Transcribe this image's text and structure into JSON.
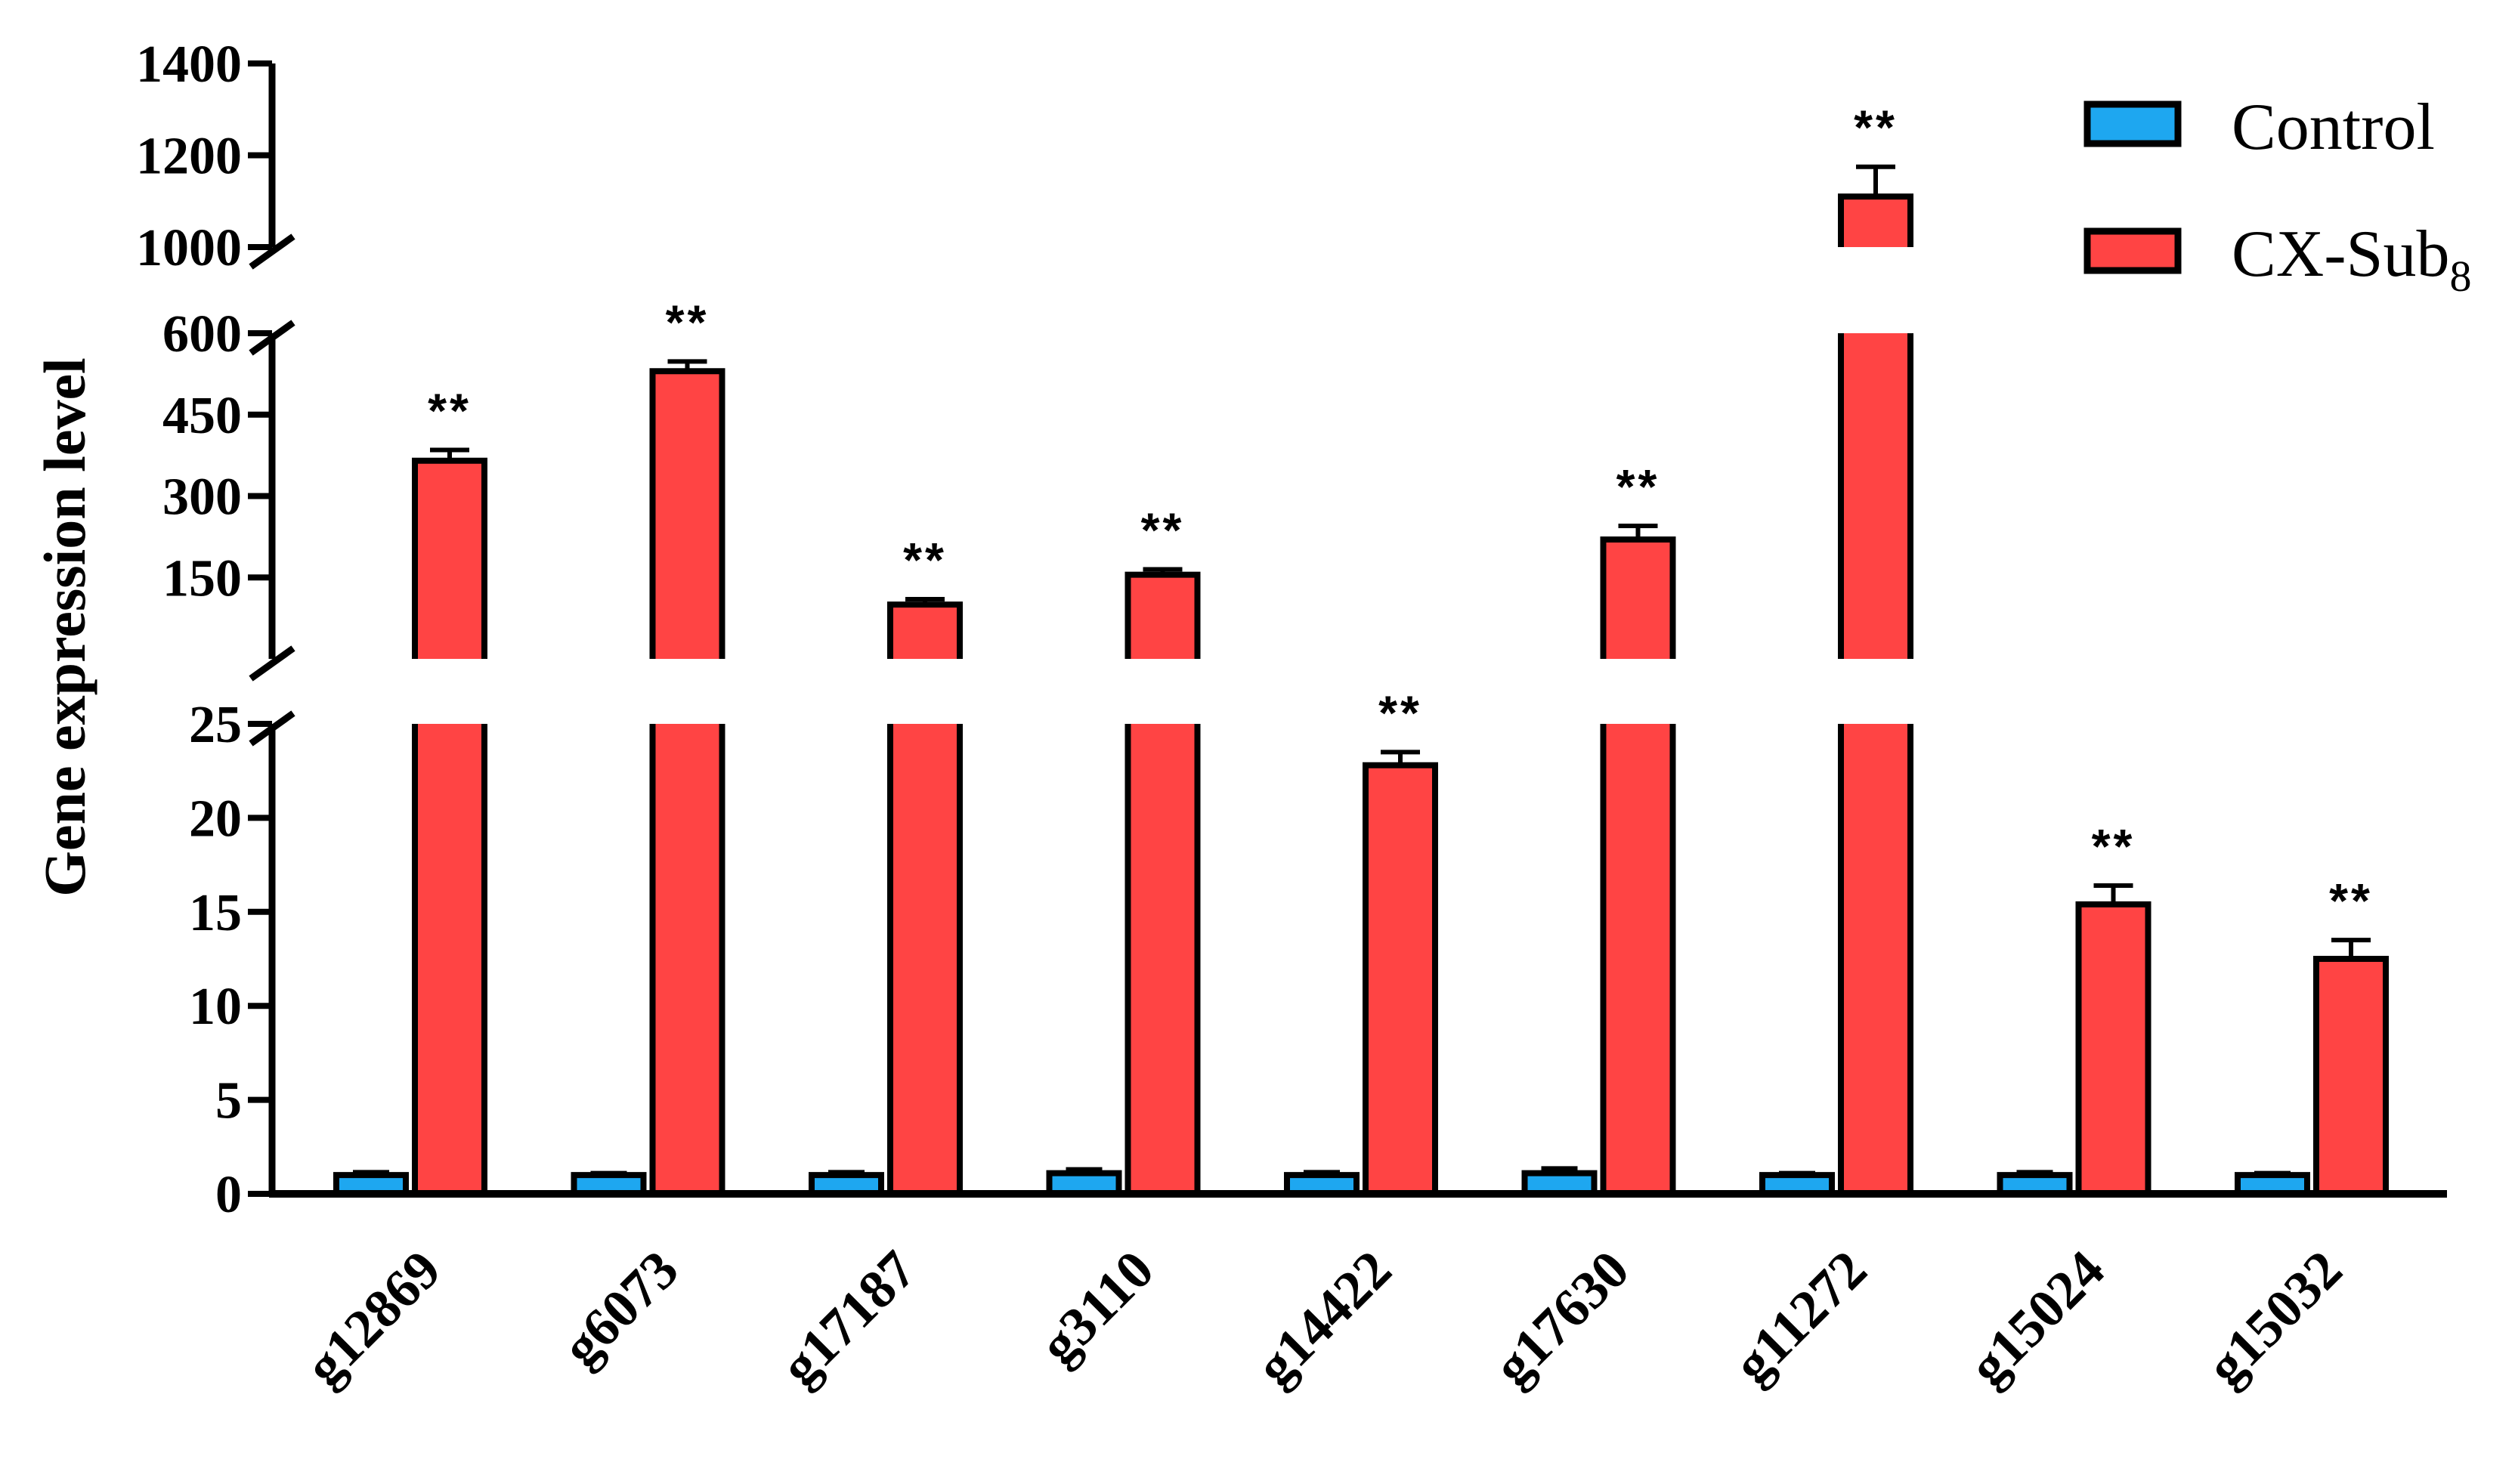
{
  "chart_data": {
    "type": "bar",
    "ylabel": "Gene expression level",
    "categories": [
      "g12869",
      "g6073",
      "g17187",
      "g3110",
      "g14422",
      "g17630",
      "g11272",
      "g15024",
      "g15032"
    ],
    "series": [
      {
        "name": "Control",
        "color": "#1ea7f0",
        "values": [
          1.0,
          1.0,
          1.0,
          1.1,
          1.0,
          1.1,
          1.0,
          1.0,
          1.0
        ],
        "errors": [
          0.15,
          0.1,
          0.15,
          0.2,
          0.15,
          0.25,
          0.1,
          0.15,
          0.1
        ]
      },
      {
        "name": "CX-Sub",
        "name_subscript": "8",
        "color": "#ff4444",
        "values": [
          365,
          530,
          100,
          155,
          22.8,
          220,
          1110,
          15.4,
          12.5
        ],
        "errors": [
          20,
          18,
          10,
          10,
          0.7,
          25,
          65,
          1.0,
          1.0
        ],
        "significance": [
          "**",
          "**",
          "**",
          "**",
          "**",
          "**",
          "**",
          "**",
          "**"
        ]
      }
    ],
    "y_axis": {
      "broken": true,
      "segments": [
        {
          "range": [
            0,
            25
          ],
          "ticks": [
            0,
            5,
            10,
            15,
            20,
            25
          ]
        },
        {
          "range": [
            0,
            600
          ],
          "ticks": [
            150,
            300,
            450,
            600
          ]
        },
        {
          "range": [
            1000,
            1400
          ],
          "ticks": [
            1000,
            1200,
            1400
          ]
        }
      ]
    },
    "legend": {
      "position": "top-right"
    },
    "grid": false
  }
}
